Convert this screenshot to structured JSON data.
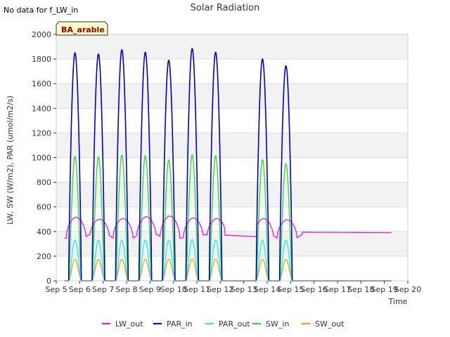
{
  "chart_data": {
    "type": "line",
    "title": "Solar Radiation",
    "nodata_note": "No data for f_LW_in",
    "site_label": "BA_arable",
    "xlabel": "Time",
    "ylabel": "LW, SW (W/m2), PAR (umol/m2/s)",
    "xlim": [
      5,
      20
    ],
    "ylim": [
      0,
      2000
    ],
    "x_ticks": [
      5,
      6,
      7,
      8,
      9,
      10,
      11,
      12,
      13,
      14,
      15,
      16,
      17,
      18,
      19,
      20
    ],
    "x_tick_labels": [
      "Sep 5",
      "Sep 6",
      "Sep 7",
      "Sep 8",
      "Sep 9",
      "Sep 10",
      "Sep 11",
      "Sep 12",
      "Sep 13",
      "Sep 14",
      "Sep 15",
      "Sep 16",
      "Sep 17",
      "Sep 18",
      "Sep 19",
      "Sep 20"
    ],
    "y_ticks": [
      0,
      200,
      400,
      600,
      800,
      1000,
      1200,
      1400,
      1600,
      1800,
      2000
    ],
    "y_tick_labels": [
      "0",
      "200",
      "400",
      "600",
      "800",
      "1000",
      "1200",
      "1400",
      "1600",
      "1800",
      "2000"
    ],
    "data_start": 5.35,
    "data_end": 19.3,
    "day_centers": [
      5.8,
      6.8,
      7.8,
      8.8,
      9.8,
      10.8,
      11.8,
      13.8,
      14.8
    ],
    "gap_days": [
      12.8
    ],
    "day_half_width": 0.27,
    "series": [
      {
        "name": "LW_out",
        "color": "#e815e8",
        "peaks": [
          515,
          500,
          505,
          520,
          525,
          510,
          505,
          505,
          495
        ],
        "night_base": 360,
        "flat_after": 15.5,
        "flat_values": [
          395,
          390
        ]
      },
      {
        "name": "PAR_in",
        "color": "#0000cc",
        "peaks": [
          1850,
          1840,
          1875,
          1855,
          1790,
          1885,
          1855,
          1800,
          1745
        ]
      },
      {
        "name": "PAR_out",
        "color": "#22e8e8",
        "peaks": [
          330,
          330,
          330,
          330,
          330,
          335,
          330,
          330,
          330
        ]
      },
      {
        "name": "SW_in",
        "color": "#22dd22",
        "peaks": [
          1010,
          1005,
          1020,
          1015,
          980,
          1025,
          1015,
          985,
          950
        ]
      },
      {
        "name": "SW_out",
        "color": "#ff9900",
        "peaks": [
          175,
          175,
          175,
          175,
          175,
          178,
          178,
          175,
          175
        ]
      }
    ]
  }
}
